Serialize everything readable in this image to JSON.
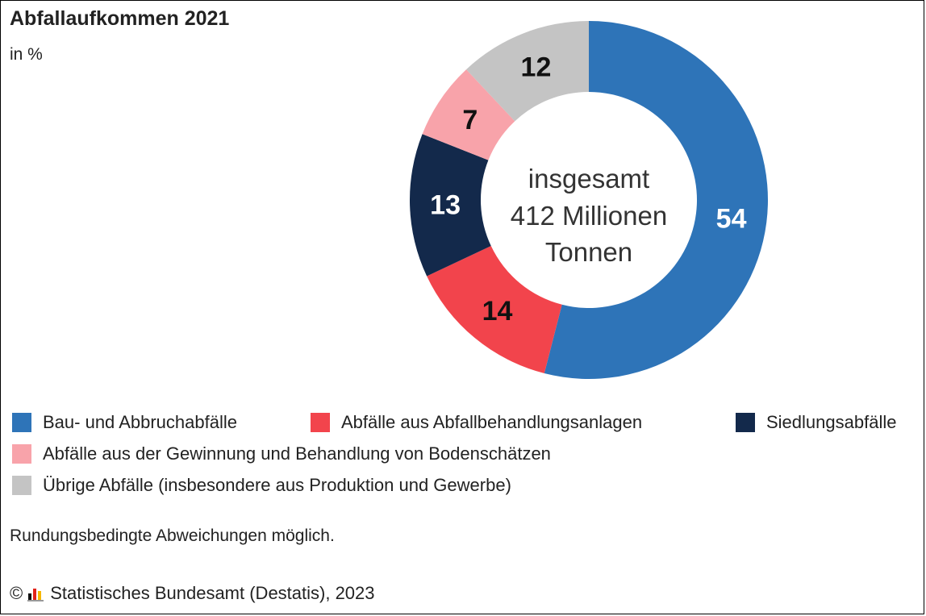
{
  "title": "Abfallaufkommen 2021",
  "subtitle": "in %",
  "center_text": [
    "insgesamt",
    "412 Millionen",
    "Tonnen"
  ],
  "note": "Rundungsbedingte Abweichungen möglich.",
  "source": {
    "copyright": "©",
    "text": "Statistisches Bundesamt (Destatis), 2023",
    "logo": "destatis-logo-icon"
  },
  "chart_data": {
    "type": "pie",
    "donut": true,
    "title": "Abfallaufkommen 2021",
    "unit": "in %",
    "categories": [
      "Bau- und Abbruchabfälle",
      "Abfälle aus Abfallbehandlungsanlagen",
      "Siedlungsabfälle",
      "Abfälle aus der Gewinnung und Behandlung von Bodenschätzen",
      "Übrige Abfälle (insbesondere aus Produktion und Gewerbe)"
    ],
    "values": [
      54,
      14,
      13,
      7,
      12
    ],
    "labels": [
      "54",
      "14",
      "13",
      "7",
      "12"
    ],
    "colors": [
      "#2e74b8",
      "#f2444c",
      "#13294b",
      "#f8a3aa",
      "#c4c4c4"
    ],
    "label_colors": [
      "#ffffff",
      "#111111",
      "#ffffff",
      "#111111",
      "#111111"
    ],
    "legend_position": "bottom"
  }
}
